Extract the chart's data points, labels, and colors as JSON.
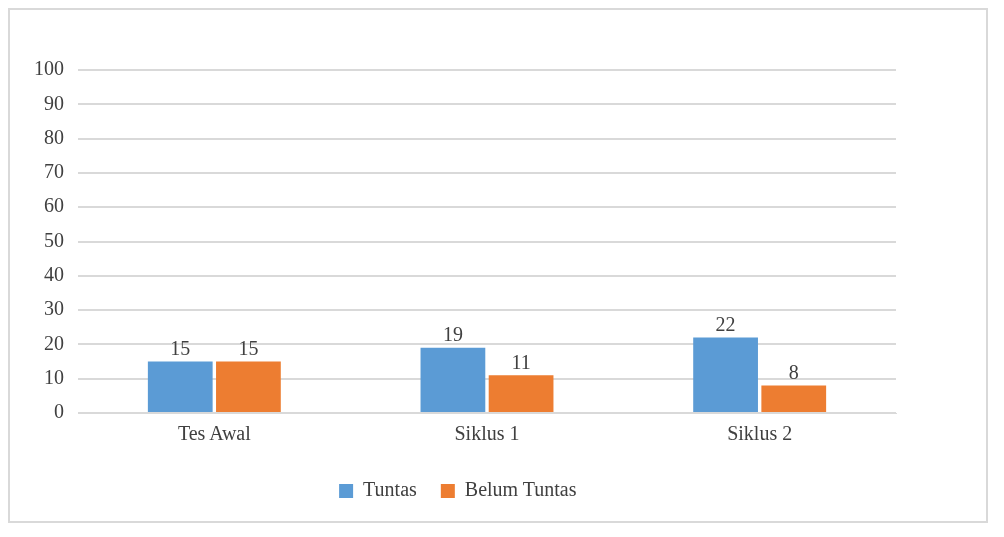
{
  "chart_data": {
    "type": "bar",
    "categories": [
      "Tes Awal",
      "Siklus 1",
      "Siklus 2"
    ],
    "series": [
      {
        "name": "Tuntas",
        "color": "#5b9bd5",
        "values": [
          15,
          19,
          22
        ]
      },
      {
        "name": "Belum Tuntas",
        "color": "#ed7d31",
        "values": [
          15,
          11,
          8
        ]
      }
    ],
    "ylim": [
      0,
      100
    ],
    "yticks": [
      0,
      10,
      20,
      30,
      40,
      50,
      60,
      70,
      80,
      90,
      100
    ],
    "grid": "y",
    "legend": "bottom",
    "data_labels": true
  }
}
